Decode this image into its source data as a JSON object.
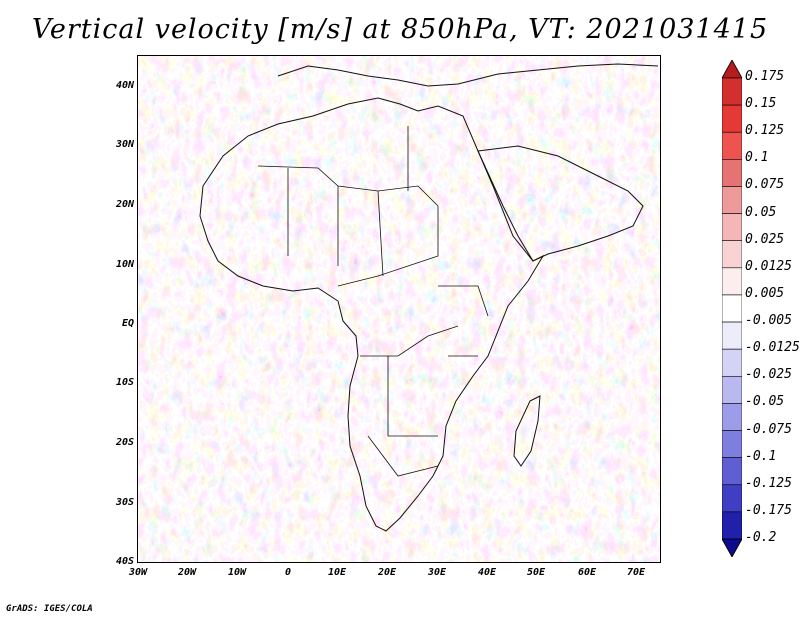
{
  "title": "Vertical velocity [m/s] at 850hPa, VT: 2021031415",
  "credit": "GrADS: IGES/COLA",
  "map": {
    "lat_labels": [
      "40N",
      "30N",
      "20N",
      "10N",
      "EQ",
      "10S",
      "20S",
      "30S",
      "40S"
    ],
    "lon_labels": [
      "30W",
      "20W",
      "10W",
      "0",
      "10E",
      "20E",
      "30E",
      "40E",
      "50E",
      "60E",
      "70E"
    ]
  },
  "colorbar": {
    "labels": [
      "0.175",
      "0.15",
      "0.125",
      "0.1",
      "0.075",
      "0.05",
      "0.025",
      "0.0125",
      "0.005",
      "-0.005",
      "-0.0125",
      "-0.025",
      "-0.05",
      "-0.075",
      "-0.1",
      "-0.125",
      "-0.175",
      "-0.2"
    ],
    "colors": [
      "#b71c1c",
      "#d32f2f",
      "#e53935",
      "#ef5350",
      "#e57373",
      "#ef9a9a",
      "#f4b6b6",
      "#f9d3d3",
      "#fdeeee",
      "#ffffff",
      "#ececfb",
      "#d3d3f6",
      "#b9b9f0",
      "#9c9ce8",
      "#7e7ede",
      "#5f5fd3",
      "#3f3fc4",
      "#2020aa",
      "#0b0b8c"
    ]
  }
}
